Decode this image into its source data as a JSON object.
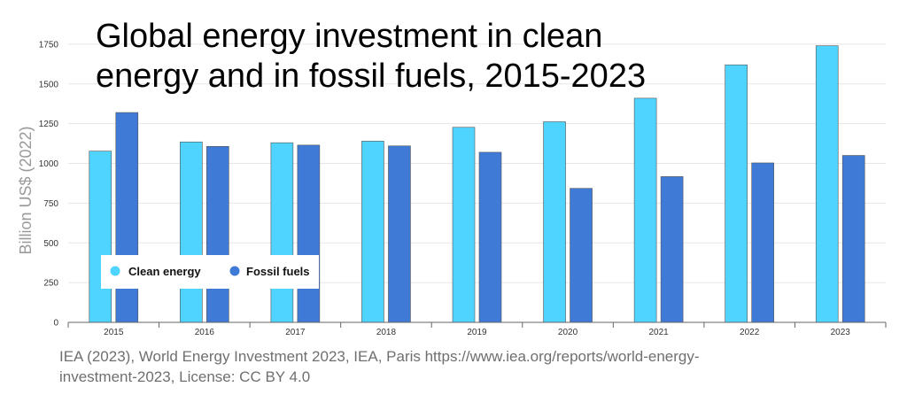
{
  "chart_data": {
    "type": "bar",
    "title": [
      "Global energy investment in clean",
      "energy and in fossil fuels, 2015-2023"
    ],
    "ylabel": "Billion US$ (2022)",
    "xlabel": "",
    "categories": [
      "2015",
      "2016",
      "2017",
      "2018",
      "2019",
      "2020",
      "2021",
      "2022",
      "2023"
    ],
    "series": [
      {
        "name": "Clean energy",
        "color": "#4fd3ff",
        "values": [
          1077,
          1135,
          1130,
          1140,
          1227,
          1262,
          1410,
          1620,
          1740
        ]
      },
      {
        "name": "Fossil fuels",
        "color": "#3f7ad6",
        "values": [
          1320,
          1107,
          1115,
          1110,
          1070,
          843,
          917,
          1003,
          1050
        ]
      }
    ],
    "yticks": [
      0,
      250,
      500,
      750,
      1000,
      1250,
      1500,
      1750
    ],
    "ylim": [
      0,
      1800
    ],
    "grid": true,
    "legend_position": "lower-left"
  },
  "source_lines": [
    "IEA (2023), World Energy Investment 2023, IEA, Paris https://www.iea.org/reports/world-energy-",
    "investment-2023, License: CC BY 4.0"
  ]
}
